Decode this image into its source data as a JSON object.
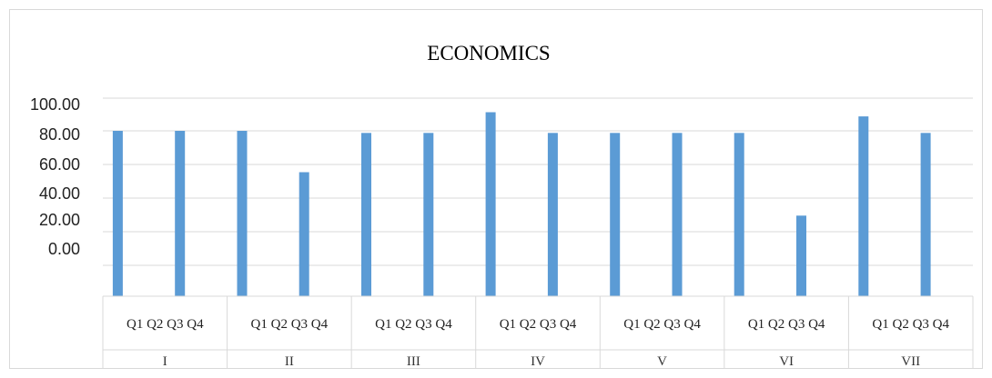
{
  "chart_data": {
    "type": "bar",
    "title": "ECONOMICS",
    "xlabel": "",
    "ylabel": "",
    "y_tick_labels": [
      "100.00",
      "80.00",
      "60.00",
      "40.00",
      "20.00",
      "0.00"
    ],
    "color": "#5b9bd5",
    "groups": [
      {
        "name": "I",
        "quarter_labels": "Q1 Q2 Q3 Q4",
        "values": [
          80,
          80
        ]
      },
      {
        "name": "II",
        "quarter_labels": "Q1 Q2 Q3 Q4",
        "values": [
          80,
          60
        ]
      },
      {
        "name": "III",
        "quarter_labels": "Q1 Q2 Q3 Q4",
        "values": [
          79,
          79
        ]
      },
      {
        "name": "IV",
        "quarter_labels": "Q1 Q2 Q3 Q4",
        "values": [
          89,
          79
        ]
      },
      {
        "name": "V",
        "quarter_labels": "Q1 Q2 Q3 Q4",
        "values": [
          79,
          79
        ]
      },
      {
        "name": "VI",
        "quarter_labels": "Q1 Q2 Q3 Q4",
        "values": [
          79,
          39
        ]
      },
      {
        "name": "VII",
        "quarter_labels": "Q1 Q2 Q3 Q4",
        "values": [
          87,
          79
        ]
      }
    ],
    "grid": true,
    "legend": "none"
  }
}
